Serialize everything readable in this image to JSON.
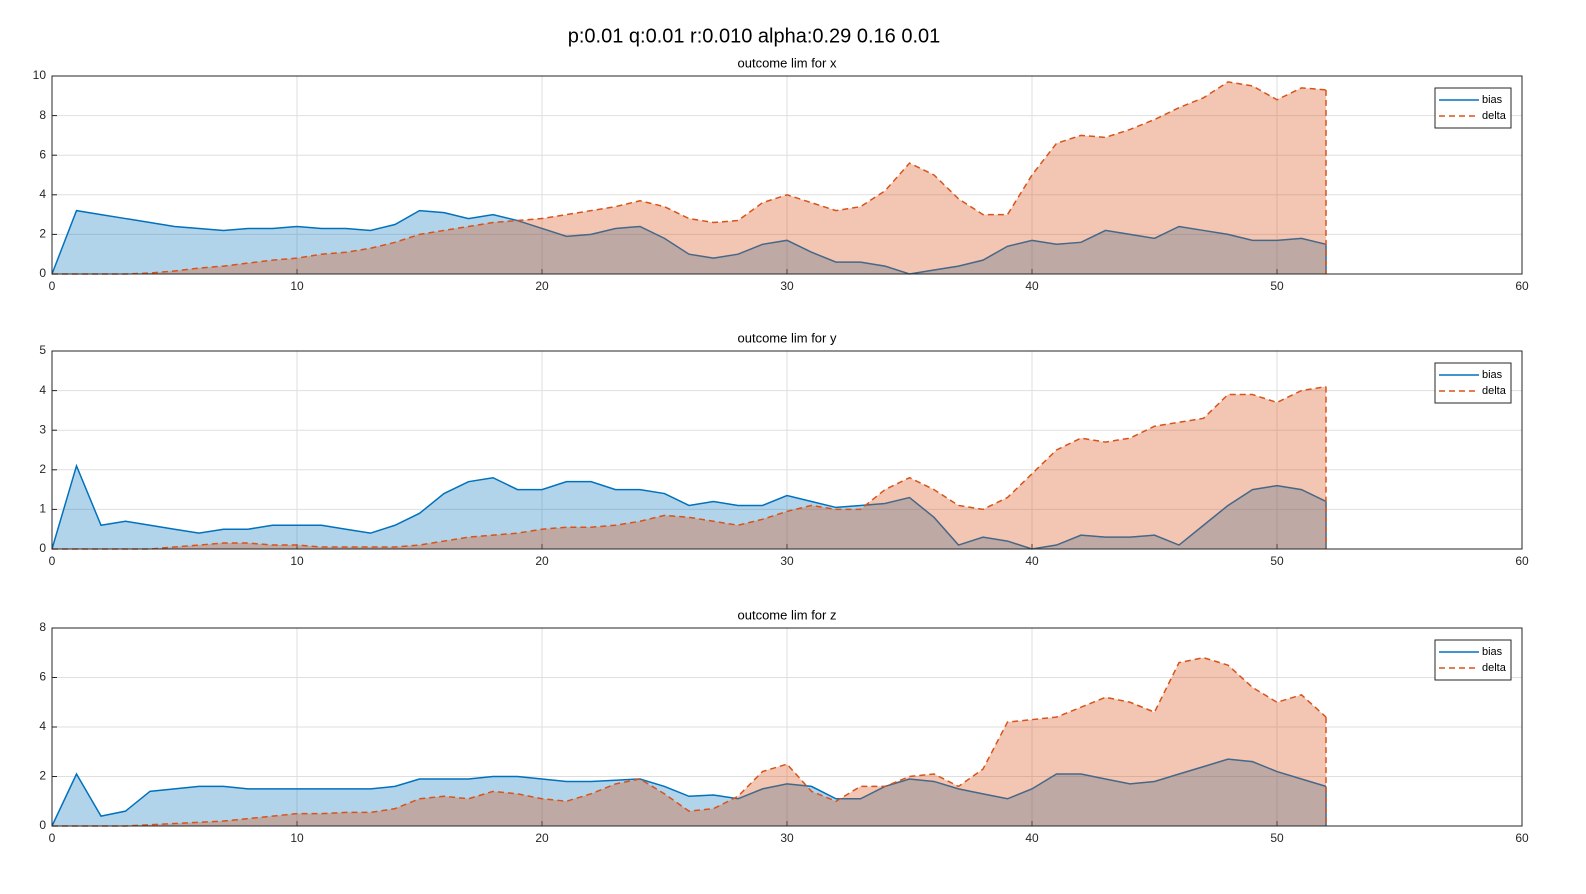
{
  "title": "p:0.01 q:0.01 r:0.010 alpha:0.29 0.16 0.01",
  "chart_data": [
    {
      "type": "area",
      "title": "outcome lim for x",
      "x": [
        0,
        1,
        2,
        3,
        4,
        5,
        6,
        7,
        8,
        9,
        10,
        11,
        12,
        13,
        14,
        15,
        16,
        17,
        18,
        19,
        20,
        21,
        22,
        23,
        24,
        25,
        26,
        27,
        28,
        29,
        30,
        31,
        32,
        33,
        34,
        35,
        36,
        37,
        38,
        39,
        40,
        41,
        42,
        43,
        44,
        45,
        46,
        47,
        48,
        49,
        50,
        51,
        52
      ],
      "series": [
        {
          "name": "bias",
          "color": "#0072bd",
          "dashed": false,
          "values": [
            0,
            3.2,
            3.0,
            2.8,
            2.6,
            2.4,
            2.3,
            2.2,
            2.3,
            2.3,
            2.4,
            2.3,
            2.3,
            2.2,
            2.5,
            3.2,
            3.1,
            2.8,
            3.0,
            2.7,
            2.3,
            1.9,
            2.0,
            2.3,
            2.4,
            1.8,
            1.0,
            0.8,
            1.0,
            1.5,
            1.7,
            1.1,
            0.6,
            0.6,
            0.4,
            0.0,
            0.2,
            0.4,
            0.7,
            1.4,
            1.7,
            1.5,
            1.6,
            2.2,
            2.0,
            1.8,
            2.4,
            2.2,
            2.0,
            1.7,
            1.7,
            1.8,
            1.5
          ]
        },
        {
          "name": "delta",
          "color": "#d95319",
          "dashed": true,
          "values": [
            0,
            0,
            0,
            0,
            0.05,
            0.15,
            0.3,
            0.4,
            0.55,
            0.7,
            0.8,
            1.0,
            1.1,
            1.3,
            1.6,
            2.0,
            2.2,
            2.4,
            2.6,
            2.7,
            2.8,
            3.0,
            3.2,
            3.4,
            3.7,
            3.4,
            2.8,
            2.6,
            2.7,
            3.6,
            4.0,
            3.6,
            3.2,
            3.4,
            4.2,
            5.6,
            5.0,
            3.8,
            3.0,
            3.0,
            5.0,
            6.6,
            7.0,
            6.9,
            7.3,
            7.8,
            8.4,
            8.9,
            9.7,
            9.5,
            8.8,
            9.4,
            9.3
          ]
        }
      ],
      "xlim": [
        0,
        60
      ],
      "xticks": [
        0,
        10,
        20,
        30,
        40,
        50,
        60
      ],
      "ylim": [
        0,
        10
      ],
      "yticks": [
        0,
        2,
        4,
        6,
        8,
        10
      ],
      "grid": true,
      "legend": "upper right"
    },
    {
      "type": "area",
      "title": "outcome lim for y",
      "x": [
        0,
        1,
        2,
        3,
        4,
        5,
        6,
        7,
        8,
        9,
        10,
        11,
        12,
        13,
        14,
        15,
        16,
        17,
        18,
        19,
        20,
        21,
        22,
        23,
        24,
        25,
        26,
        27,
        28,
        29,
        30,
        31,
        32,
        33,
        34,
        35,
        36,
        37,
        38,
        39,
        40,
        41,
        42,
        43,
        44,
        45,
        46,
        47,
        48,
        49,
        50,
        51,
        52
      ],
      "series": [
        {
          "name": "bias",
          "color": "#0072bd",
          "dashed": false,
          "values": [
            0,
            2.1,
            0.6,
            0.7,
            0.6,
            0.5,
            0.4,
            0.5,
            0.5,
            0.6,
            0.6,
            0.6,
            0.5,
            0.4,
            0.6,
            0.9,
            1.4,
            1.7,
            1.8,
            1.5,
            1.5,
            1.7,
            1.7,
            1.5,
            1.5,
            1.4,
            1.1,
            1.2,
            1.1,
            1.1,
            1.35,
            1.2,
            1.05,
            1.1,
            1.15,
            1.3,
            0.8,
            0.1,
            0.3,
            0.2,
            0.0,
            0.1,
            0.35,
            0.3,
            0.3,
            0.35,
            0.1,
            0.6,
            1.1,
            1.5,
            1.6,
            1.5,
            1.2
          ]
        },
        {
          "name": "delta",
          "color": "#d95319",
          "dashed": true,
          "values": [
            0,
            0,
            0,
            0,
            0,
            0.05,
            0.1,
            0.15,
            0.15,
            0.1,
            0.1,
            0.05,
            0.05,
            0.05,
            0.05,
            0.1,
            0.2,
            0.3,
            0.35,
            0.4,
            0.5,
            0.55,
            0.55,
            0.6,
            0.7,
            0.85,
            0.8,
            0.7,
            0.6,
            0.75,
            0.95,
            1.1,
            1.0,
            1.0,
            1.5,
            1.8,
            1.5,
            1.1,
            1.0,
            1.3,
            1.9,
            2.5,
            2.8,
            2.7,
            2.8,
            3.1,
            3.2,
            3.3,
            3.9,
            3.9,
            3.7,
            4.0,
            4.1
          ]
        }
      ],
      "xlim": [
        0,
        60
      ],
      "xticks": [
        0,
        10,
        20,
        30,
        40,
        50,
        60
      ],
      "ylim": [
        0,
        5
      ],
      "yticks": [
        0,
        1,
        2,
        3,
        4,
        5
      ],
      "grid": true,
      "legend": "upper right"
    },
    {
      "type": "area",
      "title": "outcome lim for z",
      "x": [
        0,
        1,
        2,
        3,
        4,
        5,
        6,
        7,
        8,
        9,
        10,
        11,
        12,
        13,
        14,
        15,
        16,
        17,
        18,
        19,
        20,
        21,
        22,
        23,
        24,
        25,
        26,
        27,
        28,
        29,
        30,
        31,
        32,
        33,
        34,
        35,
        36,
        37,
        38,
        39,
        40,
        41,
        42,
        43,
        44,
        45,
        46,
        47,
        48,
        49,
        50,
        51,
        52
      ],
      "series": [
        {
          "name": "bias",
          "color": "#0072bd",
          "dashed": false,
          "values": [
            0,
            2.1,
            0.4,
            0.6,
            1.4,
            1.5,
            1.6,
            1.6,
            1.5,
            1.5,
            1.5,
            1.5,
            1.5,
            1.5,
            1.6,
            1.9,
            1.9,
            1.9,
            2.0,
            2.0,
            1.9,
            1.8,
            1.8,
            1.85,
            1.9,
            1.6,
            1.2,
            1.25,
            1.1,
            1.5,
            1.7,
            1.6,
            1.1,
            1.1,
            1.6,
            1.9,
            1.8,
            1.5,
            1.3,
            1.1,
            1.5,
            2.1,
            2.1,
            1.9,
            1.7,
            1.8,
            2.1,
            2.4,
            2.7,
            2.6,
            2.2,
            1.9,
            1.6
          ]
        },
        {
          "name": "delta",
          "color": "#d95319",
          "dashed": true,
          "values": [
            0,
            0,
            0,
            0,
            0.05,
            0.1,
            0.15,
            0.2,
            0.3,
            0.4,
            0.5,
            0.5,
            0.55,
            0.55,
            0.7,
            1.1,
            1.2,
            1.1,
            1.4,
            1.3,
            1.1,
            1.0,
            1.3,
            1.7,
            1.9,
            1.3,
            0.6,
            0.7,
            1.2,
            2.2,
            2.5,
            1.4,
            1.0,
            1.6,
            1.6,
            2.0,
            2.1,
            1.6,
            2.3,
            4.2,
            4.3,
            4.4,
            4.8,
            5.2,
            5.0,
            4.6,
            6.6,
            6.8,
            6.5,
            5.6,
            5.0,
            5.3,
            4.4
          ]
        }
      ],
      "xlim": [
        0,
        60
      ],
      "xticks": [
        0,
        10,
        20,
        30,
        40,
        50,
        60
      ],
      "ylim": [
        0,
        8
      ],
      "yticks": [
        0,
        2,
        4,
        6,
        8
      ],
      "grid": true,
      "legend": "upper right"
    }
  ]
}
